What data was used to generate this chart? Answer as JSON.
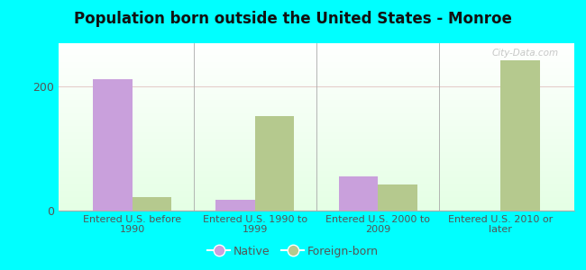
{
  "title": "Population born outside the United States - Monroe",
  "categories": [
    "Entered U.S. before\n1990",
    "Entered U.S. 1990 to\n1999",
    "Entered U.S. 2000 to\n2009",
    "Entered U.S. 2010 or\nlater"
  ],
  "native_values": [
    212,
    18,
    55,
    0
  ],
  "foreign_values": [
    22,
    152,
    42,
    242
  ],
  "native_color": "#c9a0dc",
  "foreign_color": "#b5c98e",
  "background_color": "#e8f5e8",
  "outer_bg": "#00ffff",
  "ylim": [
    0,
    270
  ],
  "yticks": [
    0,
    200
  ],
  "bar_width": 0.32,
  "legend_native": "Native",
  "legend_foreign": "Foreign-born",
  "watermark": "City-Data.com",
  "grid_color": "#ddaaaa",
  "spine_color": "#aaaaaa"
}
